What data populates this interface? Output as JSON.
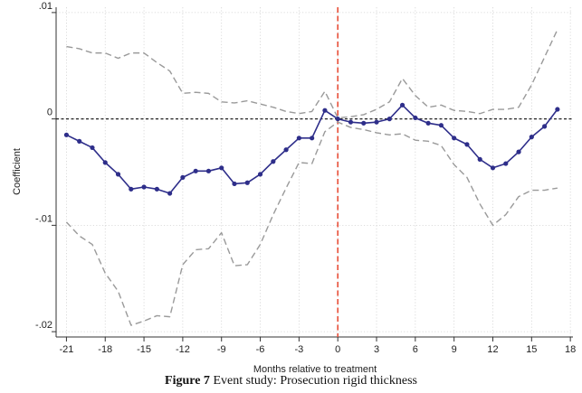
{
  "chart_data": {
    "type": "line",
    "xlabel": "Months relative to treatment",
    "ylabel": "Coefficient",
    "xlim": [
      -21.8,
      18.2
    ],
    "ylim": [
      -0.0205,
      0.0105
    ],
    "x_ticks": [
      -21,
      -18,
      -15,
      -12,
      -9,
      -6,
      -3,
      0,
      3,
      6,
      9,
      12,
      15,
      18
    ],
    "x_tick_labels": [
      "-21",
      "-18",
      "-15",
      "-12",
      "-9",
      "-6",
      "-3",
      "0",
      "3",
      "6",
      "9",
      "12",
      "15",
      "18"
    ],
    "y_ticks": [
      -0.02,
      -0.01,
      0,
      0.01
    ],
    "y_tick_labels": [
      "-.02",
      "-.01",
      "0",
      ".01"
    ],
    "grid": true,
    "zero_line": {
      "y": 0,
      "style": "dashed",
      "color": "#222222"
    },
    "treatment_line": {
      "x": 0,
      "style": "dashed",
      "color": "#e8503a"
    },
    "x": [
      -21,
      -20,
      -19,
      -18,
      -17,
      -16,
      -15,
      -14,
      -13,
      -12,
      -11,
      -10,
      -9,
      -8,
      -7,
      -6,
      -5,
      -4,
      -3,
      -2,
      -1,
      0,
      1,
      2,
      3,
      4,
      5,
      6,
      7,
      8,
      9,
      10,
      11,
      12,
      13,
      14,
      15,
      16,
      17
    ],
    "series": [
      {
        "role": "estimate",
        "color": "#2e2e8a",
        "markers": true,
        "values": [
          -0.0015,
          -0.0021,
          -0.0027,
          -0.0041,
          -0.0052,
          -0.0066,
          -0.0064,
          -0.0066,
          -0.007,
          -0.0055,
          -0.0049,
          -0.0049,
          -0.0046,
          -0.0061,
          -0.006,
          -0.0052,
          -0.004,
          -0.0029,
          -0.0018,
          -0.0018,
          0.0008,
          0.0,
          -0.0003,
          -0.0004,
          -0.0003,
          0.0,
          0.0013,
          0.0001,
          -0.0004,
          -0.0006,
          -0.0018,
          -0.0024,
          -0.0038,
          -0.0046,
          -0.0042,
          -0.0031,
          -0.0017,
          -0.0007,
          0.0009
        ]
      },
      {
        "role": "upper_ci",
        "color": "#9a9a9a",
        "markers": false,
        "values": [
          0.0068,
          0.0066,
          0.0062,
          0.0062,
          0.0057,
          0.0062,
          0.0062,
          0.0053,
          0.0045,
          0.0024,
          0.0025,
          0.0024,
          0.0016,
          0.0015,
          0.0017,
          0.0014,
          0.0011,
          0.0007,
          0.0005,
          0.0007,
          0.0026,
          0.0001,
          0.0002,
          0.0004,
          0.0009,
          0.0016,
          0.0038,
          0.0022,
          0.0011,
          0.0013,
          0.0008,
          0.0007,
          0.0005,
          0.0009,
          0.0009,
          0.0011,
          0.0032,
          0.0058,
          0.0084
        ]
      },
      {
        "role": "lower_ci",
        "color": "#9a9a9a",
        "markers": false,
        "values": [
          -0.0097,
          -0.011,
          -0.0118,
          -0.0145,
          -0.0162,
          -0.0194,
          -0.019,
          -0.0185,
          -0.0186,
          -0.0137,
          -0.0123,
          -0.0122,
          -0.0107,
          -0.0138,
          -0.0137,
          -0.0118,
          -0.009,
          -0.0065,
          -0.0041,
          -0.0042,
          -0.0012,
          -0.0003,
          -0.0008,
          -0.001,
          -0.0013,
          -0.0015,
          -0.0014,
          -0.002,
          -0.0021,
          -0.0025,
          -0.0043,
          -0.0055,
          -0.008,
          -0.01,
          -0.009,
          -0.0073,
          -0.0067,
          -0.0067,
          -0.0065
        ]
      }
    ]
  },
  "caption": {
    "label": "Figure 7",
    "text": "Event study: Prosecution rigid thickness"
  }
}
